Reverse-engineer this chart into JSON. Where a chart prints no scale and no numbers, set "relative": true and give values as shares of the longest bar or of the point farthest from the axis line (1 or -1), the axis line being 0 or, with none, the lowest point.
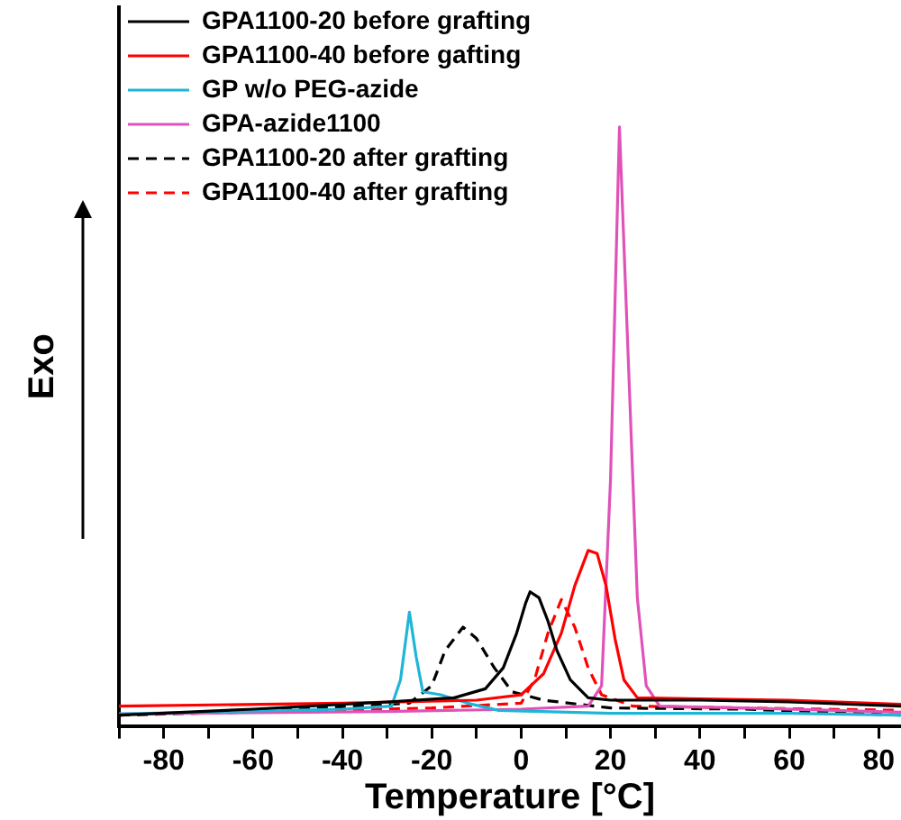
{
  "chart_data": {
    "type": "line",
    "xlabel": "Temperature [°C]",
    "ylabel": "Exo",
    "relative": true,
    "legend": "top left",
    "grid": false,
    "marker": "none",
    "xlim": [
      -90,
      85
    ],
    "xticks": [
      {
        "value": -90,
        "label": null
      },
      -80,
      {
        "value": -70,
        "label": null
      },
      -60,
      {
        "value": -50,
        "label": null
      },
      -40,
      {
        "value": -30,
        "label": null
      },
      -20,
      {
        "value": -10,
        "label": null
      },
      0,
      {
        "value": 10,
        "label": null
      },
      20,
      {
        "value": 30,
        "label": null
      },
      40,
      {
        "value": 50,
        "label": null
      },
      60,
      {
        "value": 70,
        "label": null
      },
      80
    ],
    "series": [
      {
        "name": "GPA1100-20 before grafting",
        "color": "#000000",
        "line_style": "solid",
        "x": [
          -90,
          -60,
          -30,
          -15,
          -8,
          -4,
          -1,
          1,
          2,
          4,
          6,
          8,
          11,
          15,
          20,
          40,
          60,
          85
        ],
        "values": [
          0.018,
          0.028,
          0.04,
          0.047,
          0.062,
          0.097,
          0.155,
          0.205,
          0.224,
          0.214,
          0.175,
          0.126,
          0.077,
          0.047,
          0.043,
          0.043,
          0.04,
          0.033
        ]
      },
      {
        "name": "GPA1100-40 before gafting",
        "color": "#ff0000",
        "line_style": "solid",
        "x": [
          -90,
          -40,
          -10,
          0,
          5,
          9,
          12,
          15,
          17,
          19,
          21,
          23,
          26,
          40,
          60,
          85
        ],
        "values": [
          0.033,
          0.038,
          0.043,
          0.052,
          0.087,
          0.155,
          0.234,
          0.293,
          0.288,
          0.234,
          0.146,
          0.077,
          0.047,
          0.045,
          0.043,
          0.036
        ]
      },
      {
        "name": "GP w/o PEG-azide",
        "color": "#1fb5d6",
        "line_style": "solid",
        "x": [
          -90,
          -40,
          -29,
          -27,
          -25,
          -23.5,
          -22,
          -18,
          -12,
          -5,
          20,
          60,
          85
        ],
        "values": [
          0.02,
          0.028,
          0.033,
          0.077,
          0.19,
          0.116,
          0.057,
          0.052,
          0.038,
          0.026,
          0.021,
          0.021,
          0.018
        ]
      },
      {
        "name": "GPA-azide1100",
        "color": "#e052b8",
        "line_style": "solid",
        "x": [
          -90,
          -30,
          0,
          15,
          18,
          20,
          22,
          24,
          26,
          28,
          31,
          50,
          85
        ],
        "values": [
          0.02,
          0.024,
          0.028,
          0.033,
          0.067,
          0.411,
          1,
          0.607,
          0.214,
          0.067,
          0.033,
          0.03,
          0.023
        ]
      },
      {
        "name": "GPA1100-20 after grafting",
        "color": "#000000",
        "line_style": "dashed",
        "x": [
          -90,
          -50,
          -25,
          -20,
          -17,
          -13,
          -10,
          -6,
          -2,
          5,
          20,
          50,
          85
        ],
        "values": [
          0.018,
          0.028,
          0.038,
          0.067,
          0.126,
          0.165,
          0.146,
          0.097,
          0.057,
          0.043,
          0.03,
          0.028,
          0.018
        ]
      },
      {
        "name": "GPA1100-40 after grafting",
        "color": "#ff0000",
        "line_style": "dashed",
        "x": [
          -90,
          -20,
          0,
          3,
          6,
          9,
          12,
          15,
          18,
          25,
          50,
          85
        ],
        "values": [
          0.018,
          0.03,
          0.038,
          0.077,
          0.155,
          0.211,
          0.165,
          0.097,
          0.052,
          0.033,
          0.03,
          0.026
        ]
      }
    ]
  }
}
